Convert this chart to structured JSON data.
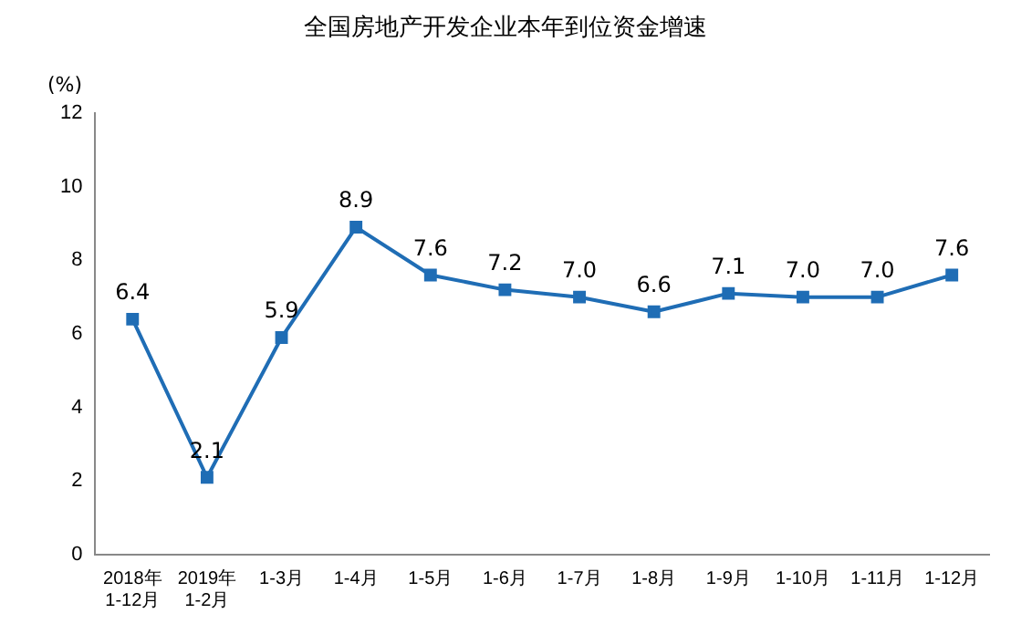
{
  "chart_data": {
    "type": "line",
    "title": "全国房地产开发企业本年到位资金增速",
    "ylabel": "(%)",
    "categories": [
      "2018年\n1-12月",
      "2019年\n1-2月",
      "1-3月",
      "1-4月",
      "1-5月",
      "1-6月",
      "1-7月",
      "1-8月",
      "1-9月",
      "1-10月",
      "1-11月",
      "1-12月"
    ],
    "values": [
      6.4,
      2.1,
      5.9,
      8.9,
      7.6,
      7.2,
      7.0,
      6.6,
      7.1,
      7.0,
      7.0,
      7.6
    ],
    "value_labels": [
      "6.4",
      "2.1",
      "5.9",
      "8.9",
      "7.6",
      "7.2",
      "7.0",
      "6.6",
      "7.1",
      "7.0",
      "7.0",
      "7.6"
    ],
    "color": "#1f6db5",
    "marker": "square",
    "line_style": "solid",
    "ylim": [
      0,
      12
    ],
    "yticks": [
      0,
      2,
      4,
      6,
      8,
      10,
      12
    ],
    "grid": false,
    "legend": false
  }
}
